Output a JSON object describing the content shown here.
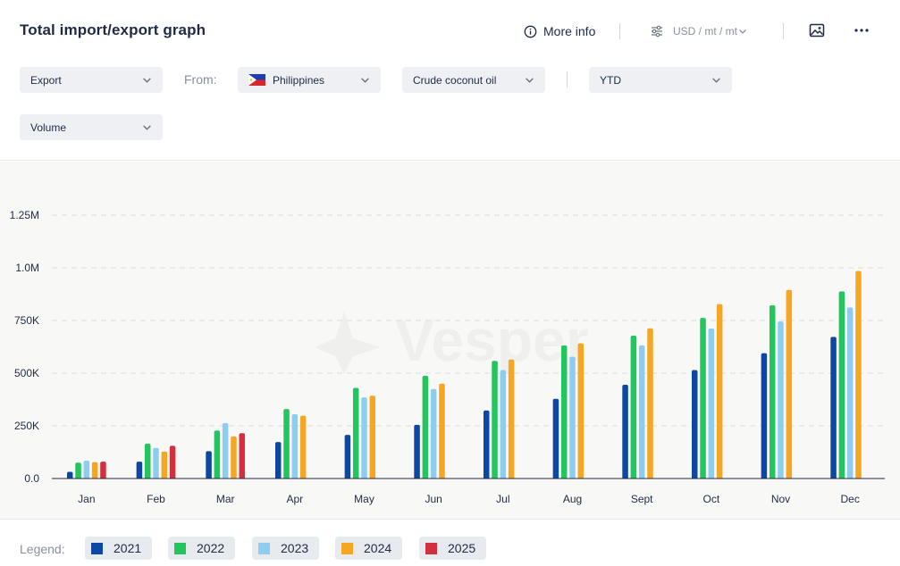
{
  "header": {
    "title": "Total import/export graph",
    "more_info_label": "More info",
    "more_info_icon": "info-circle-icon",
    "units_label": "USD / mt / mt",
    "units_icon": "sliders-icon",
    "image_icon": "image-export-icon",
    "menu_icon": "more-dots-icon"
  },
  "filters": {
    "flow": "Export",
    "from_label": "From:",
    "country": "Philippines",
    "country_icon": "philippines-flag-icon",
    "product": "Crude coconut oil",
    "period": "YTD",
    "measure": "Volume"
  },
  "watermark": "Vesper",
  "legend": {
    "label": "Legend:",
    "items": [
      {
        "label": "2021",
        "color": "#0d47a1"
      },
      {
        "label": "2022",
        "color": "#22c55e"
      },
      {
        "label": "2023",
        "color": "#8ecdf0"
      },
      {
        "label": "2024",
        "color": "#f5a623"
      },
      {
        "label": "2025",
        "color": "#d32f3f"
      }
    ]
  },
  "chart_data": {
    "type": "bar",
    "categories": [
      "Jan",
      "Feb",
      "Mar",
      "Apr",
      "May",
      "Jun",
      "Jul",
      "Aug",
      "Sept",
      "Oct",
      "Nov",
      "Dec"
    ],
    "ylim": [
      0,
      1250000
    ],
    "yticks": [
      0,
      250000,
      500000,
      750000,
      1000000,
      1250000
    ],
    "ytick_labels": [
      "0.0",
      "250K",
      "500K",
      "750K",
      "1.0M",
      "1.25M"
    ],
    "grid": true,
    "series": [
      {
        "name": "2021",
        "color": "#0d47a1",
        "values": [
          32000,
          80000,
          130000,
          173000,
          207000,
          255000,
          323000,
          378000,
          445000,
          515000,
          595000,
          672000
        ]
      },
      {
        "name": "2022",
        "color": "#22c55e",
        "values": [
          75000,
          165000,
          228000,
          330000,
          430000,
          488000,
          558000,
          632000,
          678000,
          762000,
          822000,
          888000
        ]
      },
      {
        "name": "2023",
        "color": "#8ecdf0",
        "values": [
          85000,
          145000,
          263000,
          305000,
          385000,
          425000,
          515000,
          578000,
          632000,
          712000,
          745000,
          812000
        ]
      },
      {
        "name": "2024",
        "color": "#f5a623",
        "values": [
          78000,
          128000,
          200000,
          298000,
          393000,
          450000,
          565000,
          642000,
          713000,
          828000,
          895000,
          985000
        ]
      },
      {
        "name": "2025",
        "color": "#d32f3f",
        "values": [
          80000,
          155000,
          215000,
          null,
          null,
          null,
          null,
          null,
          null,
          null,
          null,
          null
        ]
      }
    ]
  }
}
